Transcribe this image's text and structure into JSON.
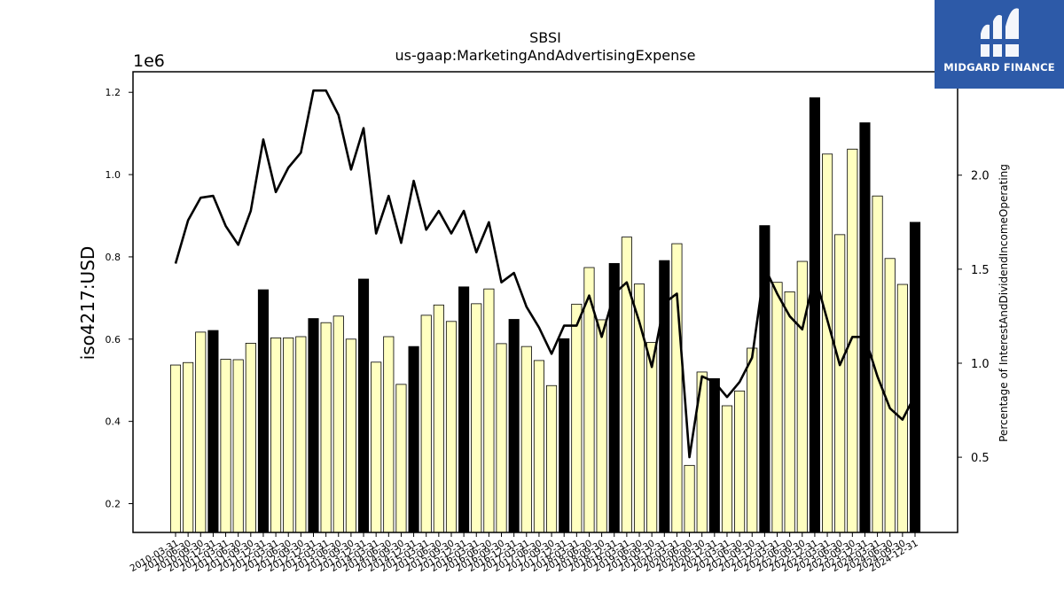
{
  "chart_data": {
    "type": "bar+line",
    "title": "SBSI",
    "subtitle": "us-gaap:MarketingAndAdvertisingExpense",
    "ylabel": "iso4217:USD",
    "y_offset_label": "1e6",
    "y2label": "Percentage of InterestAndDividendIncomeOperating",
    "ylim": [
      130000,
      1250000
    ],
    "y2lim": [
      0.1,
      2.55
    ],
    "yticks": [
      200000,
      400000,
      600000,
      800000,
      1000000,
      1200000
    ],
    "ytick_labels": [
      "0.2",
      "0.4",
      "0.6",
      "0.8",
      "1.0",
      "1.2"
    ],
    "y2ticks": [
      0.5,
      1.0,
      1.5,
      2.0
    ],
    "y2tick_labels": [
      "0.5",
      "1.0",
      "1.5",
      "2.0"
    ],
    "categories": [
      "2010-03-31",
      "2010-06-30",
      "2010-09-30",
      "2010-12-31",
      "2011-03-31",
      "2011-06-30",
      "2011-09-30",
      "2011-12-31",
      "2012-03-31",
      "2012-06-30",
      "2012-09-30",
      "2012-12-31",
      "2013-03-31",
      "2013-06-30",
      "2013-09-30",
      "2013-12-31",
      "2014-03-31",
      "2014-06-30",
      "2014-09-30",
      "2014-12-31",
      "2015-03-31",
      "2015-06-30",
      "2015-09-30",
      "2015-12-31",
      "2016-03-31",
      "2016-06-30",
      "2016-09-30",
      "2016-12-31",
      "2017-03-31",
      "2017-06-30",
      "2017-09-30",
      "2017-12-31",
      "2018-03-31",
      "2018-06-30",
      "2018-09-30",
      "2018-12-31",
      "2019-03-31",
      "2019-06-30",
      "2019-09-30",
      "2019-12-31",
      "2020-03-31",
      "2020-06-30",
      "2020-09-30",
      "2020-12-31",
      "2021-03-31",
      "2021-06-30",
      "2021-09-30",
      "2021-12-31",
      "2022-03-31",
      "2022-06-30",
      "2022-09-30",
      "2022-12-31",
      "2023-03-31",
      "2023-06-30",
      "2023-09-30",
      "2023-12-31",
      "2024-03-31",
      "2024-06-30",
      "2024-09-30",
      "2024-12-31"
    ],
    "series": [
      {
        "kind": "bar",
        "values": [
          537000,
          543000,
          617000,
          621000,
          551000,
          550000,
          590000,
          720000,
          603000,
          603000,
          606000,
          650000,
          640000,
          656000,
          600000,
          746000,
          544000,
          606000,
          490000,
          582000,
          658000,
          683000,
          643000,
          727000,
          686000,
          722000,
          589000,
          648000,
          582000,
          548000,
          487000,
          601000,
          685000,
          774000,
          647000,
          784000,
          848000,
          734000,
          592000,
          791000,
          832000,
          293000,
          520000,
          504000,
          438000,
          474000,
          578000,
          876000,
          738000,
          715000,
          789000,
          1187000,
          1050000,
          854000,
          1062000,
          1126000,
          948000,
          796000,
          733000,
          884000
        ],
        "highlight": [
          false,
          false,
          false,
          true,
          false,
          false,
          false,
          true,
          false,
          false,
          false,
          true,
          false,
          false,
          false,
          true,
          false,
          false,
          false,
          true,
          false,
          false,
          false,
          true,
          false,
          false,
          false,
          true,
          false,
          false,
          false,
          true,
          false,
          false,
          false,
          true,
          false,
          false,
          false,
          true,
          false,
          false,
          false,
          true,
          false,
          false,
          false,
          true,
          false,
          false,
          false,
          true,
          false,
          false,
          false,
          true,
          false,
          false,
          false,
          true
        ],
        "color": "#ffffc0",
        "highlight_color": "#000000",
        "edge_color": "#000000"
      },
      {
        "kind": "line",
        "axis": "right",
        "values": [
          1.53,
          1.76,
          1.88,
          1.89,
          1.73,
          1.63,
          1.81,
          2.19,
          1.91,
          2.04,
          2.12,
          2.45,
          2.45,
          2.32,
          2.03,
          2.25,
          1.69,
          1.89,
          1.64,
          1.97,
          1.71,
          1.81,
          1.69,
          1.81,
          1.59,
          1.75,
          1.43,
          1.48,
          1.3,
          1.19,
          1.05,
          1.2,
          1.2,
          1.36,
          1.14,
          1.37,
          1.43,
          1.22,
          0.98,
          1.32,
          1.37,
          0.5,
          0.93,
          0.9,
          0.82,
          0.9,
          1.03,
          1.51,
          1.37,
          1.25,
          1.18,
          1.47,
          1.23,
          0.99,
          1.14,
          1.14,
          0.93,
          0.76,
          0.7,
          0.83
        ],
        "color": "#000000"
      }
    ]
  },
  "watermark": {
    "text": "MIDGARD FINANCE",
    "bg_color": "#2d5aa8"
  }
}
